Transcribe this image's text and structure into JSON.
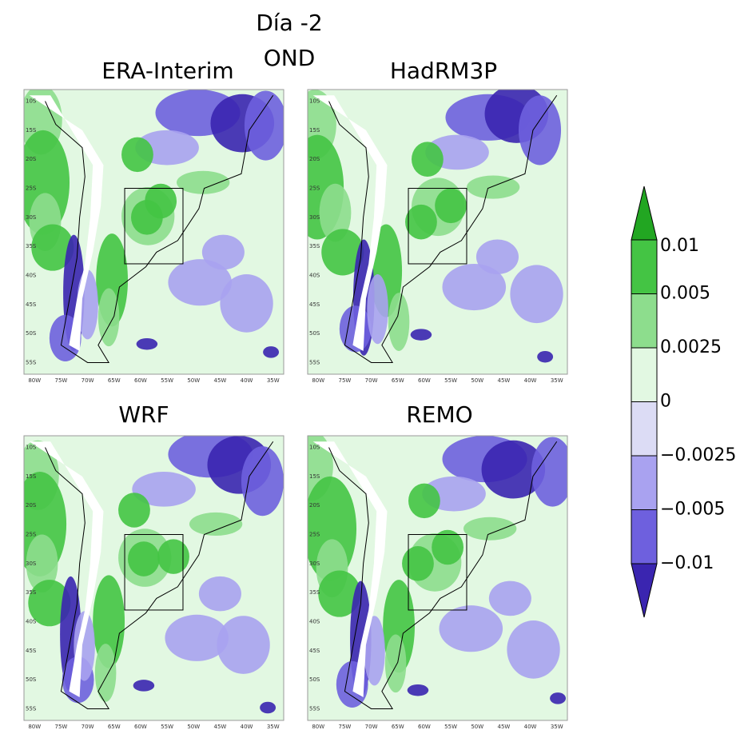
{
  "header": {
    "title": "Día -2",
    "subtitle": "OND"
  },
  "panels": [
    {
      "title": "ERA-Interim"
    },
    {
      "title": "HadRM3P"
    },
    {
      "title": "WRF"
    },
    {
      "title": "REMO"
    }
  ],
  "lat_labels": [
    "10S",
    "15S",
    "20S",
    "25S",
    "30S",
    "35S",
    "40S",
    "45S",
    "50S",
    "55S"
  ],
  "lon_labels": [
    "80W",
    "75W",
    "70W",
    "65W",
    "60W",
    "55W",
    "50W",
    "45W",
    "40W",
    "35W"
  ],
  "colorbar": {
    "levels": [
      {
        "value": -0.01,
        "label": "−0.01"
      },
      {
        "value": -0.005,
        "label": "−0.005"
      },
      {
        "value": -0.0025,
        "label": "−0.0025"
      },
      0,
      0.0025,
      0.005,
      0.01
    ],
    "colors": [
      "#3a25b0",
      "#6e60de",
      "#a9a2f0",
      "#dcdcf5",
      "#e2f8e2",
      "#8ddd8d",
      "#44c444",
      "#22a622"
    ]
  }
}
